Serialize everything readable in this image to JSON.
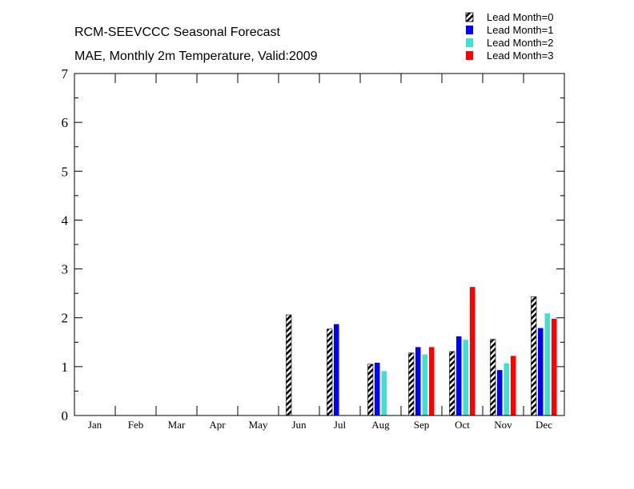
{
  "chart_data": {
    "type": "bar",
    "title": "RCM-SEEVCCC Seasonal Forecast",
    "subtitle": "MAE, Monthly 2m Temperature, Valid:2009",
    "xlabel": "",
    "ylabel": "",
    "ylim": [
      0,
      7
    ],
    "y_ticks": [
      "0",
      "1",
      "2",
      "3",
      "4",
      "5",
      "6",
      "7"
    ],
    "categories": [
      "Jan",
      "Feb",
      "Mar",
      "Apr",
      "May",
      "Jun",
      "Jul",
      "Aug",
      "Sep",
      "Oct",
      "Nov",
      "Dec"
    ],
    "legend_position": "top-right",
    "series": [
      {
        "name": "Lead Month=0",
        "color": "#000000",
        "pattern": "hatched",
        "values": [
          null,
          null,
          null,
          null,
          null,
          2.06,
          1.77,
          1.05,
          1.28,
          1.31,
          1.56,
          2.43
        ]
      },
      {
        "name": "Lead Month=1",
        "color": "#0000ff",
        "pattern": "solid",
        "values": [
          null,
          null,
          null,
          null,
          null,
          null,
          1.87,
          1.08,
          1.4,
          1.62,
          0.93,
          1.79
        ]
      },
      {
        "name": "Lead Month=2",
        "color": "#40e0d0",
        "pattern": "solid",
        "values": [
          null,
          null,
          null,
          null,
          null,
          null,
          null,
          0.91,
          1.25,
          1.55,
          1.07,
          2.09
        ]
      },
      {
        "name": "Lead Month=3",
        "color": "#ff0000",
        "pattern": "solid",
        "values": [
          null,
          null,
          null,
          null,
          null,
          null,
          null,
          null,
          1.4,
          2.63,
          1.22,
          1.98
        ]
      }
    ]
  }
}
